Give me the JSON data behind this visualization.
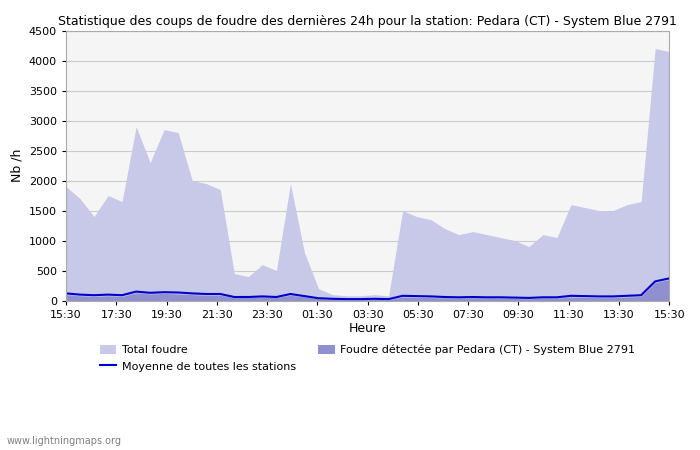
{
  "title": "Statistique des coups de foudre des dernières 24h pour la station: Pedara (CT) - System Blue 2791",
  "xlabel": "Heure",
  "ylabel": "Nb /h",
  "ylim": [
    0,
    4500
  ],
  "yticks": [
    0,
    500,
    1000,
    1500,
    2000,
    2500,
    3000,
    3500,
    4000,
    4500
  ],
  "xtick_labels": [
    "15:30",
    "17:30",
    "19:30",
    "21:30",
    "23:30",
    "01:30",
    "03:30",
    "05:30",
    "07:30",
    "09:30",
    "11:30",
    "13:30",
    "15:30"
  ],
  "bg_color": "#ffffff",
  "plot_bg_color": "#f5f5f5",
  "grid_color": "#cccccc",
  "total_foudre_color": "#c8c8e8",
  "pedara_color": "#9090d0",
  "moyenne_color": "#0000cc",
  "watermark": "www.lightningmaps.org",
  "legend": {
    "total_foudre": "Total foudre",
    "pedara": "Foudre détectée par Pedara (CT) - System Blue 2791",
    "moyenne": "Moyenne de toutes les stations"
  },
  "total_foudre": [
    1900,
    1700,
    1400,
    1750,
    1650,
    2900,
    2300,
    2850,
    2800,
    2000,
    1950,
    1850,
    450,
    400,
    600,
    500,
    1950,
    800,
    200,
    100,
    80,
    80,
    100,
    80,
    1500,
    1400,
    1350,
    1200,
    1100,
    1150,
    1100,
    1050,
    1000,
    900,
    1100,
    1050,
    1600,
    1550,
    1500,
    1500,
    1600,
    1650,
    4200,
    4150
  ],
  "pedara": [
    100,
    80,
    70,
    80,
    70,
    130,
    110,
    120,
    110,
    100,
    90,
    90,
    50,
    50,
    60,
    50,
    90,
    60,
    30,
    20,
    15,
    15,
    20,
    15,
    60,
    55,
    50,
    45,
    40,
    45,
    40,
    40,
    35,
    30,
    40,
    40,
    60,
    55,
    50,
    50,
    60,
    70,
    300,
    350
  ],
  "moyenne": [
    120,
    100,
    90,
    100,
    90,
    150,
    130,
    140,
    135,
    120,
    110,
    110,
    60,
    60,
    70,
    60,
    110,
    75,
    40,
    30,
    25,
    25,
    30,
    25,
    80,
    75,
    70,
    60,
    55,
    60,
    55,
    55,
    50,
    45,
    55,
    55,
    80,
    75,
    70,
    70,
    80,
    90,
    320,
    370
  ]
}
